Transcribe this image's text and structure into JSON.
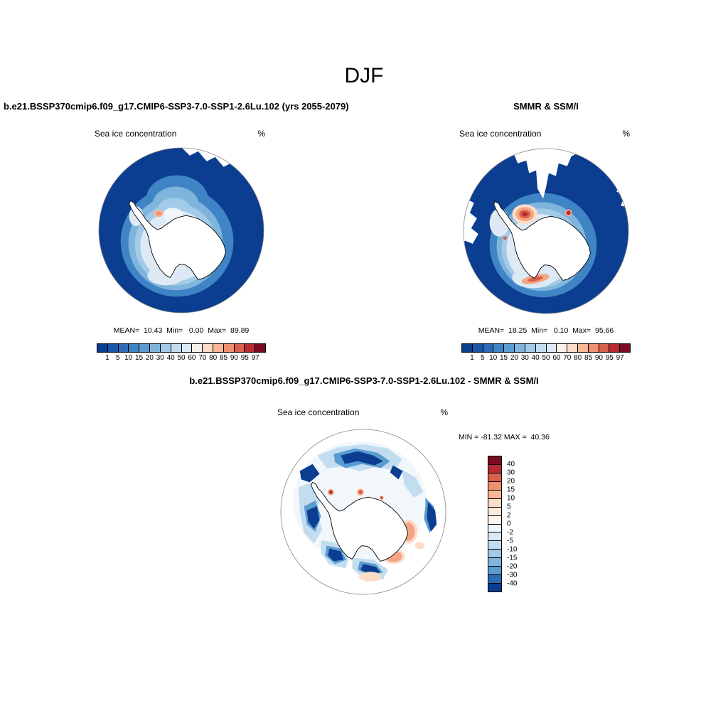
{
  "title": "DJF",
  "panels": {
    "model": {
      "title": "b.e21.BSSP370cmip6.f09_g17.CMIP6-SSP3-7.0-SSP1-2.6Lu.102 (yrs 2055-2079)",
      "field_label": "Sea ice concentration",
      "units": "%",
      "stats": "MEAN=  10.43  Min=   0.00  Max=  89.89"
    },
    "obs": {
      "title": "SMMR & SSM/I",
      "field_label": "Sea ice concentration",
      "units": "%",
      "stats": "MEAN=  18.25  Min=   0.10  Max=  95.66"
    },
    "diff": {
      "title": "b.e21.BSSP370cmip6.f09_g17.CMIP6-SSP3-7.0-SSP1-2.6Lu.102 - SMMR & SSM/I",
      "field_label": "Sea ice concentration",
      "units": "%",
      "stats": "MIN = -81.32 MAX =  40.36"
    }
  },
  "colorbars": {
    "concentration": {
      "orientation": "horizontal",
      "ticks": [
        "1",
        "5",
        "10",
        "15",
        "20",
        "30",
        "40",
        "50",
        "60",
        "70",
        "80",
        "85",
        "90",
        "95",
        "97"
      ],
      "colors": [
        "#0b3d91",
        "#1b55a5",
        "#2d6cb5",
        "#3f84c4",
        "#5a9bd0",
        "#7fb5dd",
        "#a3cbe7",
        "#c3ddf0",
        "#ddeaf6",
        "#f9efe7",
        "#fddcc8",
        "#f8b896",
        "#ef9071",
        "#d9604c",
        "#b72a32",
        "#7a0c22"
      ]
    },
    "difference": {
      "orientation": "vertical",
      "ticks": [
        "40",
        "30",
        "20",
        "15",
        "10",
        "5",
        "2",
        "0",
        "-2",
        "-5",
        "-10",
        "-15",
        "-20",
        "-30",
        "-40"
      ],
      "colors": [
        "#7a0c22",
        "#b72a32",
        "#d9604c",
        "#ef9071",
        "#f8b896",
        "#fddcc8",
        "#fcebdd",
        "#fdf6f0",
        "#f2f7fb",
        "#ddeaf6",
        "#c3ddf0",
        "#a3cbe7",
        "#7fb5dd",
        "#5a9bd0",
        "#2d6cb5",
        "#0b3d91"
      ]
    }
  },
  "chart_data": [
    {
      "type": "heatmap",
      "panel": "model",
      "season": "DJF",
      "title": "b.e21.BSSP370cmip6.f09_g17.CMIP6-SSP3-7.0-SSP1-2.6Lu.102 (yrs 2055-2079)",
      "variable": "Sea ice concentration",
      "units": "%",
      "projection": "south-polar-stereographic",
      "region": "Antarctic",
      "contour_levels": [
        1,
        5,
        10,
        15,
        20,
        30,
        40,
        50,
        60,
        70,
        80,
        85,
        90,
        95,
        97
      ],
      "stats": {
        "mean": 10.43,
        "min": 0.0,
        "max": 89.89
      },
      "legend_position": "bottom"
    },
    {
      "type": "heatmap",
      "panel": "observations",
      "season": "DJF",
      "title": "SMMR & SSM/I",
      "variable": "Sea ice concentration",
      "units": "%",
      "projection": "south-polar-stereographic",
      "region": "Antarctic",
      "contour_levels": [
        1,
        5,
        10,
        15,
        20,
        30,
        40,
        50,
        60,
        70,
        80,
        85,
        90,
        95,
        97
      ],
      "stats": {
        "mean": 18.25,
        "min": 0.1,
        "max": 95.66
      },
      "legend_position": "bottom"
    },
    {
      "type": "heatmap",
      "panel": "difference (model - observations)",
      "season": "DJF",
      "title": "b.e21.BSSP370cmip6.f09_g17.CMIP6-SSP3-7.0-SSP1-2.6Lu.102 - SMMR & SSM/I",
      "variable": "Sea ice concentration",
      "units": "%",
      "projection": "south-polar-stereographic",
      "region": "Antarctic",
      "contour_levels": [
        -40,
        -30,
        -20,
        -15,
        -10,
        -5,
        -2,
        0,
        2,
        5,
        10,
        15,
        20,
        30,
        40
      ],
      "stats": {
        "min": -81.32,
        "max": 40.36
      },
      "legend_position": "right"
    }
  ]
}
